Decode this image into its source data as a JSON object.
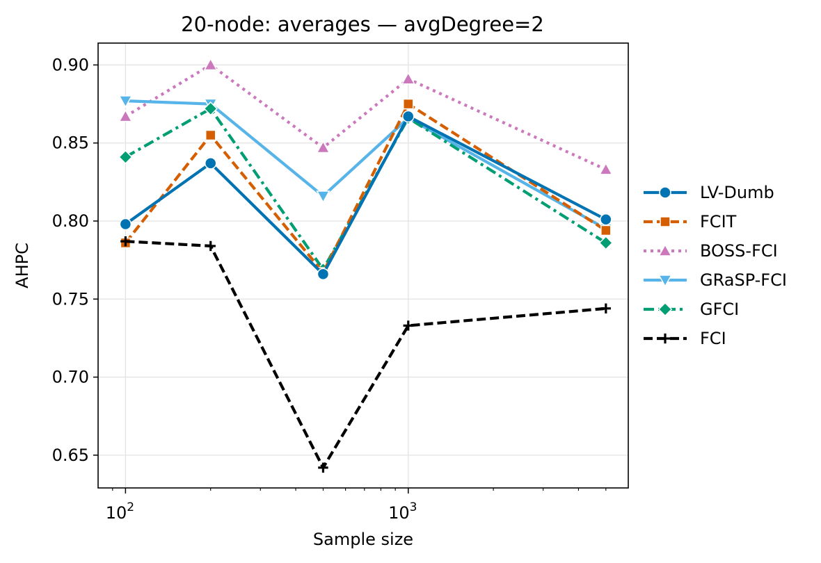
{
  "chart_data": {
    "type": "line",
    "title": "20-node: averages — avgDegree=2",
    "xlabel": "Sample size",
    "ylabel": "AHPC",
    "xscale": "log",
    "x": [
      100,
      200,
      500,
      1000,
      5000
    ],
    "xlim": [
      80,
      6000
    ],
    "ylim": [
      0.629,
      0.914
    ],
    "xticks": [
      {
        "value": 100,
        "base": "10",
        "exp": "2"
      },
      {
        "value": 1000,
        "base": "10",
        "exp": "3"
      }
    ],
    "yticks": [
      {
        "value": 0.65,
        "label": "0.65"
      },
      {
        "value": 0.7,
        "label": "0.70"
      },
      {
        "value": 0.75,
        "label": "0.75"
      },
      {
        "value": 0.8,
        "label": "0.80"
      },
      {
        "value": 0.85,
        "label": "0.85"
      },
      {
        "value": 0.9,
        "label": "0.90"
      }
    ],
    "grid": true,
    "legend_position": "outside-right",
    "series": [
      {
        "name": "BOSS-FCI",
        "values": [
          0.867,
          0.9,
          0.847,
          0.891,
          0.833
        ],
        "color": "#cc78bc",
        "dash": "dotted",
        "marker": "triangle-up"
      },
      {
        "name": "GRaSP-FCI",
        "values": [
          0.877,
          0.875,
          0.816,
          0.866,
          0.795
        ],
        "color": "#56b4e9",
        "dash": "solid",
        "marker": "triangle-down"
      },
      {
        "name": "GFCI",
        "values": [
          0.841,
          0.872,
          0.769,
          0.866,
          0.786
        ],
        "color": "#029e73",
        "dash": "dashdot",
        "marker": "diamond"
      },
      {
        "name": "FCIT",
        "values": [
          0.786,
          0.855,
          0.767,
          0.875,
          0.794
        ],
        "color": "#d55e00",
        "dash": "dashed",
        "marker": "square"
      },
      {
        "name": "LV-Dumb",
        "values": [
          0.798,
          0.837,
          0.766,
          0.867,
          0.801
        ],
        "color": "#0173b2",
        "dash": "solid",
        "marker": "circle"
      },
      {
        "name": "FCI",
        "values": [
          0.787,
          0.784,
          0.642,
          0.733,
          0.744
        ],
        "color": "#000000",
        "dash": "dashed",
        "marker": "plus"
      }
    ],
    "legend_order": [
      "LV-Dumb",
      "FCIT",
      "BOSS-FCI",
      "GRaSP-FCI",
      "GFCI",
      "FCI"
    ]
  }
}
